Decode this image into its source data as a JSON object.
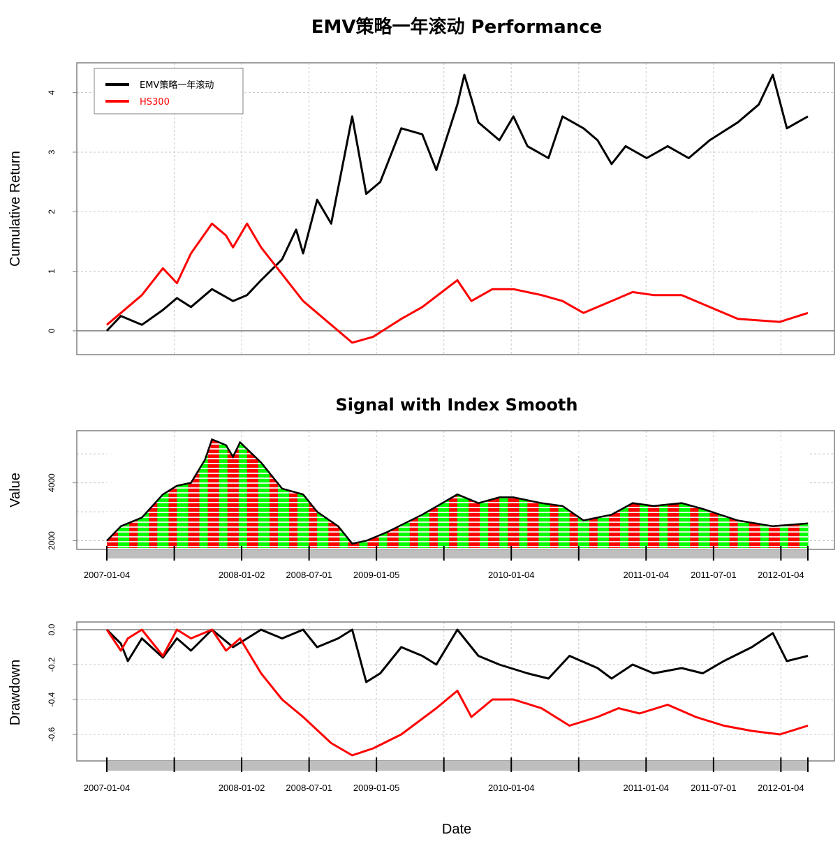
{
  "chart_data": [
    {
      "type": "line",
      "title": "EMV策略一年滚动 Performance",
      "ylabel": "Cumulative Return",
      "ylim": [
        -0.4,
        4.5
      ],
      "yticks": [
        0,
        1,
        2,
        3,
        4
      ],
      "legend": {
        "position": "top-left",
        "entries": [
          "EMV策略一年滚动",
          "HS300"
        ]
      },
      "series": [
        {
          "name": "EMV策略一年滚动",
          "color": "#000000",
          "points": [
            [
              0,
              0
            ],
            [
              0.02,
              0.25
            ],
            [
              0.05,
              0.1
            ],
            [
              0.08,
              0.35
            ],
            [
              0.1,
              0.55
            ],
            [
              0.12,
              0.4
            ],
            [
              0.15,
              0.7
            ],
            [
              0.18,
              0.5
            ],
            [
              0.2,
              0.6
            ],
            [
              0.22,
              0.85
            ],
            [
              0.25,
              1.2
            ],
            [
              0.27,
              1.7
            ],
            [
              0.28,
              1.3
            ],
            [
              0.3,
              2.2
            ],
            [
              0.32,
              1.8
            ],
            [
              0.35,
              3.6
            ],
            [
              0.37,
              2.3
            ],
            [
              0.39,
              2.5
            ],
            [
              0.42,
              3.4
            ],
            [
              0.45,
              3.3
            ],
            [
              0.47,
              2.7
            ],
            [
              0.5,
              3.8
            ],
            [
              0.51,
              4.3
            ],
            [
              0.53,
              3.5
            ],
            [
              0.56,
              3.2
            ],
            [
              0.58,
              3.6
            ],
            [
              0.6,
              3.1
            ],
            [
              0.63,
              2.9
            ],
            [
              0.65,
              3.6
            ],
            [
              0.68,
              3.4
            ],
            [
              0.7,
              3.2
            ],
            [
              0.72,
              2.8
            ],
            [
              0.74,
              3.1
            ],
            [
              0.77,
              2.9
            ],
            [
              0.8,
              3.1
            ],
            [
              0.83,
              2.9
            ],
            [
              0.86,
              3.2
            ],
            [
              0.9,
              3.5
            ],
            [
              0.93,
              3.8
            ],
            [
              0.95,
              4.3
            ],
            [
              0.97,
              3.4
            ],
            [
              1,
              3.6
            ]
          ]
        },
        {
          "name": "HS300",
          "color": "#ff0000",
          "points": [
            [
              0,
              0.1
            ],
            [
              0.02,
              0.3
            ],
            [
              0.05,
              0.6
            ],
            [
              0.08,
              1.05
            ],
            [
              0.1,
              0.8
            ],
            [
              0.12,
              1.3
            ],
            [
              0.15,
              1.8
            ],
            [
              0.17,
              1.6
            ],
            [
              0.18,
              1.4
            ],
            [
              0.2,
              1.8
            ],
            [
              0.22,
              1.4
            ],
            [
              0.24,
              1.1
            ],
            [
              0.26,
              0.8
            ],
            [
              0.28,
              0.5
            ],
            [
              0.32,
              0.1
            ],
            [
              0.35,
              -0.2
            ],
            [
              0.38,
              -0.1
            ],
            [
              0.42,
              0.2
            ],
            [
              0.45,
              0.4
            ],
            [
              0.5,
              0.85
            ],
            [
              0.52,
              0.5
            ],
            [
              0.55,
              0.7
            ],
            [
              0.58,
              0.7
            ],
            [
              0.62,
              0.6
            ],
            [
              0.65,
              0.5
            ],
            [
              0.68,
              0.3
            ],
            [
              0.72,
              0.5
            ],
            [
              0.75,
              0.65
            ],
            [
              0.78,
              0.6
            ],
            [
              0.82,
              0.6
            ],
            [
              0.86,
              0.4
            ],
            [
              0.9,
              0.2
            ],
            [
              0.96,
              0.15
            ],
            [
              1,
              0.3
            ]
          ]
        }
      ]
    },
    {
      "type": "area",
      "title": "Signal with Index Smooth",
      "ylabel": "Value",
      "ylim": [
        1700,
        5800
      ],
      "yticks": [
        2000,
        4000
      ],
      "x_tick_labels": [
        "2007-01-04",
        "2008-01-02",
        "2008-07-01",
        "2009-01-05",
        "2010-01-04",
        "2011-01-04",
        "2011-07-01",
        "2012-01-04"
      ],
      "colors": {
        "buy": "#00ff00",
        "sell": "#ff0000",
        "line": "#000000"
      },
      "index_points": [
        [
          0,
          2000
        ],
        [
          0.02,
          2500
        ],
        [
          0.05,
          2800
        ],
        [
          0.08,
          3600
        ],
        [
          0.1,
          3900
        ],
        [
          0.12,
          4000
        ],
        [
          0.14,
          4800
        ],
        [
          0.15,
          5500
        ],
        [
          0.17,
          5300
        ],
        [
          0.18,
          4900
        ],
        [
          0.19,
          5400
        ],
        [
          0.22,
          4700
        ],
        [
          0.25,
          3800
        ],
        [
          0.28,
          3600
        ],
        [
          0.3,
          3000
        ],
        [
          0.33,
          2500
        ],
        [
          0.35,
          1900
        ],
        [
          0.37,
          2000
        ],
        [
          0.4,
          2300
        ],
        [
          0.45,
          2900
        ],
        [
          0.5,
          3600
        ],
        [
          0.53,
          3300
        ],
        [
          0.56,
          3500
        ],
        [
          0.58,
          3500
        ],
        [
          0.62,
          3300
        ],
        [
          0.65,
          3200
        ],
        [
          0.68,
          2700
        ],
        [
          0.72,
          2900
        ],
        [
          0.75,
          3300
        ],
        [
          0.78,
          3200
        ],
        [
          0.82,
          3300
        ],
        [
          0.85,
          3100
        ],
        [
          0.9,
          2700
        ],
        [
          0.95,
          2500
        ],
        [
          1,
          2600
        ]
      ],
      "signal_segments": [
        "sell",
        "buy",
        "sell",
        "buy",
        "sell",
        "buy",
        "sell",
        "buy",
        "sell",
        "buy",
        "sell",
        "buy",
        "sell",
        "buy",
        "sell",
        "buy",
        "sell",
        "buy",
        "sell",
        "buy",
        "sell",
        "buy",
        "sell",
        "buy",
        "sell",
        "buy",
        "sell",
        "buy",
        "sell",
        "buy",
        "sell",
        "buy",
        "sell",
        "buy",
        "sell",
        "buy",
        "sell",
        "buy",
        "sell",
        "buy",
        "sell",
        "buy",
        "sell",
        "buy",
        "sell",
        "buy",
        "sell",
        "buy",
        "sell",
        "buy",
        "sell",
        "buy",
        "sell",
        "buy",
        "sell",
        "buy",
        "sell",
        "buy",
        "sell",
        "buy",
        "sell",
        "buy",
        "sell",
        "buy",
        "sell",
        "buy",
        "sell",
        "buy",
        "sell",
        "buy"
      ]
    },
    {
      "type": "line",
      "title": "",
      "ylabel": "Drawdown",
      "xlabel": "Date",
      "ylim": [
        -0.75,
        0.03
      ],
      "yticks": [
        0,
        -0.2,
        -0.4,
        -0.6
      ],
      "ytick_labels": [
        "0.0",
        "-0.2",
        "-0.4",
        "-0.6"
      ],
      "x_tick_labels": [
        "2007-01-04",
        "2008-01-02",
        "2008-07-01",
        "2009-01-05",
        "2010-01-04",
        "2011-01-04",
        "2011-07-01",
        "2012-01-04"
      ],
      "series": [
        {
          "name": "EMV策略一年滚动",
          "color": "#000000",
          "points": [
            [
              0,
              0
            ],
            [
              0.02,
              -0.08
            ],
            [
              0.03,
              -0.18
            ],
            [
              0.05,
              -0.05
            ],
            [
              0.08,
              -0.16
            ],
            [
              0.1,
              -0.05
            ],
            [
              0.12,
              -0.12
            ],
            [
              0.15,
              0
            ],
            [
              0.18,
              -0.1
            ],
            [
              0.2,
              -0.05
            ],
            [
              0.22,
              0
            ],
            [
              0.25,
              -0.05
            ],
            [
              0.28,
              0
            ],
            [
              0.3,
              -0.1
            ],
            [
              0.33,
              -0.05
            ],
            [
              0.35,
              0
            ],
            [
              0.37,
              -0.3
            ],
            [
              0.39,
              -0.25
            ],
            [
              0.42,
              -0.1
            ],
            [
              0.45,
              -0.15
            ],
            [
              0.47,
              -0.2
            ],
            [
              0.5,
              0
            ],
            [
              0.53,
              -0.15
            ],
            [
              0.56,
              -0.2
            ],
            [
              0.6,
              -0.25
            ],
            [
              0.63,
              -0.28
            ],
            [
              0.66,
              -0.15
            ],
            [
              0.7,
              -0.22
            ],
            [
              0.72,
              -0.28
            ],
            [
              0.75,
              -0.2
            ],
            [
              0.78,
              -0.25
            ],
            [
              0.82,
              -0.22
            ],
            [
              0.85,
              -0.25
            ],
            [
              0.88,
              -0.18
            ],
            [
              0.92,
              -0.1
            ],
            [
              0.95,
              -0.02
            ],
            [
              0.97,
              -0.18
            ],
            [
              1,
              -0.15
            ]
          ]
        },
        {
          "name": "HS300",
          "color": "#ff0000",
          "points": [
            [
              0,
              0
            ],
            [
              0.02,
              -0.12
            ],
            [
              0.03,
              -0.05
            ],
            [
              0.05,
              0
            ],
            [
              0.08,
              -0.15
            ],
            [
              0.1,
              0
            ],
            [
              0.12,
              -0.05
            ],
            [
              0.15,
              0
            ],
            [
              0.17,
              -0.12
            ],
            [
              0.19,
              -0.05
            ],
            [
              0.22,
              -0.25
            ],
            [
              0.25,
              -0.4
            ],
            [
              0.28,
              -0.5
            ],
            [
              0.32,
              -0.65
            ],
            [
              0.35,
              -0.72
            ],
            [
              0.38,
              -0.68
            ],
            [
              0.42,
              -0.6
            ],
            [
              0.47,
              -0.45
            ],
            [
              0.5,
              -0.35
            ],
            [
              0.52,
              -0.5
            ],
            [
              0.55,
              -0.4
            ],
            [
              0.58,
              -0.4
            ],
            [
              0.62,
              -0.45
            ],
            [
              0.66,
              -0.55
            ],
            [
              0.7,
              -0.5
            ],
            [
              0.73,
              -0.45
            ],
            [
              0.76,
              -0.48
            ],
            [
              0.8,
              -0.43
            ],
            [
              0.84,
              -0.5
            ],
            [
              0.88,
              -0.55
            ],
            [
              0.92,
              -0.58
            ],
            [
              0.96,
              -0.6
            ],
            [
              1,
              -0.55
            ]
          ]
        }
      ]
    }
  ]
}
